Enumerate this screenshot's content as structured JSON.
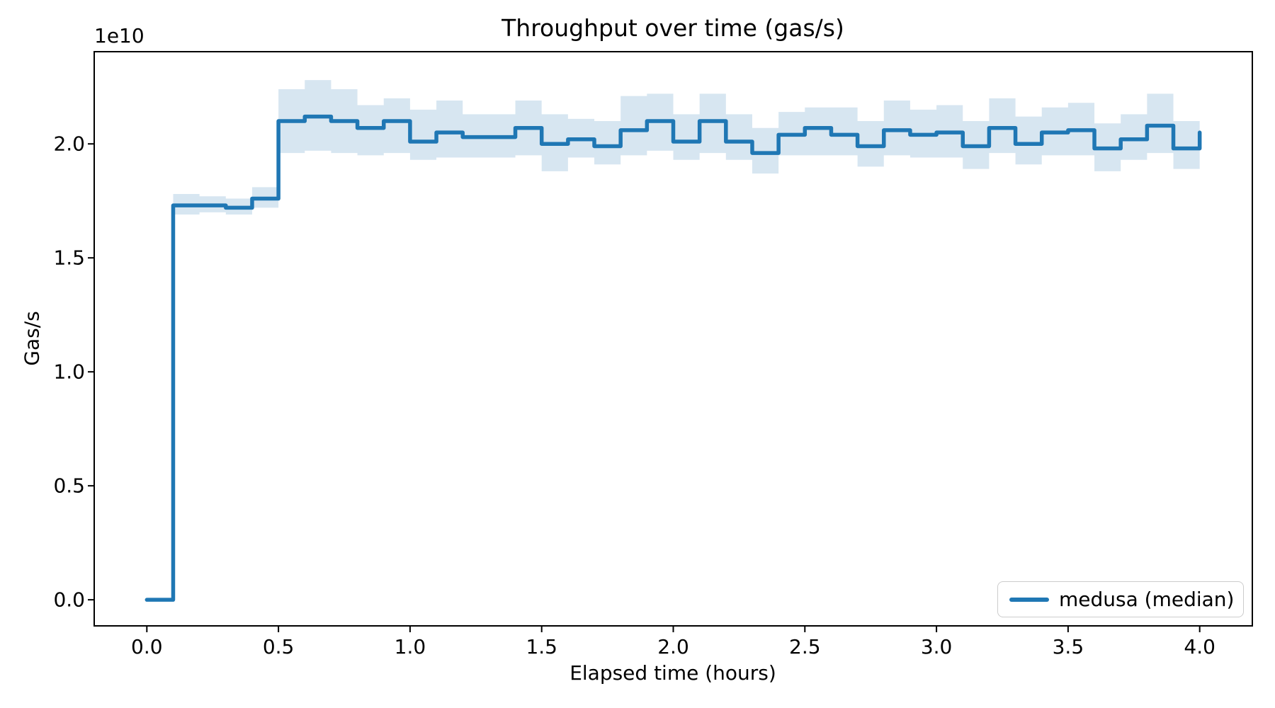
{
  "figure": {
    "title": "Throughput over time (gas/s)",
    "xlabel": "Elapsed time (hours)",
    "ylabel": "Gas/s",
    "offset_text": "1e10",
    "legend": {
      "label": "medusa (median)"
    },
    "colors": {
      "line": "#1f77b4",
      "band": "rgba(31,119,180,0.18)",
      "spine": "#000000",
      "text": "#000000",
      "legend_border": "#cccccc"
    }
  },
  "chart_data": {
    "type": "line",
    "subtype": "step-post-with-confidence-band",
    "title": "Throughput over time (gas/s)",
    "xlabel": "Elapsed time (hours)",
    "ylabel": "Gas/s",
    "y_scale_factor_label": "1e10",
    "grid": false,
    "legend_position": "lower right",
    "legend_entries": [
      "medusa (median)"
    ],
    "x_ticks": [
      "0.0",
      "0.5",
      "1.0",
      "1.5",
      "2.0",
      "2.5",
      "3.0",
      "3.5",
      "4.0"
    ],
    "y_ticks": [
      "0.0",
      "0.5",
      "1.0",
      "1.5",
      "2.0"
    ],
    "xlim_hours": [
      -0.2,
      4.2
    ],
    "ylim_1e10": [
      -0.1145,
      2.4045
    ],
    "x_hours": [
      0.0,
      0.1,
      0.2,
      0.3,
      0.4,
      0.5,
      0.6,
      0.7,
      0.8,
      0.9,
      1.0,
      1.1,
      1.2,
      1.3,
      1.4,
      1.5,
      1.6,
      1.7,
      1.8,
      1.9,
      2.0,
      2.1,
      2.2,
      2.3,
      2.4,
      2.5,
      2.6,
      2.7,
      2.8,
      2.9,
      3.0,
      3.1,
      3.2,
      3.3,
      3.4,
      3.5,
      3.6,
      3.7,
      3.8,
      3.9,
      4.0
    ],
    "series": [
      {
        "name": "medusa (median)",
        "median_gas_per_s_1e10": [
          0.0,
          1.73,
          1.73,
          1.72,
          1.76,
          2.1,
          2.12,
          2.1,
          2.07,
          2.1,
          2.01,
          2.05,
          2.03,
          2.03,
          2.07,
          2.0,
          2.02,
          1.99,
          2.06,
          2.1,
          2.01,
          2.1,
          2.01,
          1.96,
          2.04,
          2.07,
          2.04,
          1.99,
          2.06,
          2.04,
          2.05,
          1.99,
          2.07,
          2.0,
          2.05,
          2.06,
          1.98,
          2.02,
          2.08,
          1.98,
          2.05
        ],
        "band_lower_1e10": [
          0.0,
          1.69,
          1.7,
          1.69,
          1.72,
          1.96,
          1.97,
          1.96,
          1.95,
          1.96,
          1.93,
          1.94,
          1.94,
          1.94,
          1.95,
          1.88,
          1.94,
          1.91,
          1.95,
          1.97,
          1.93,
          1.96,
          1.93,
          1.87,
          1.95,
          1.95,
          1.95,
          1.9,
          1.95,
          1.94,
          1.94,
          1.89,
          1.96,
          1.91,
          1.95,
          1.95,
          1.88,
          1.93,
          1.96,
          1.89,
          1.96
        ],
        "band_upper_1e10": [
          0.0,
          1.78,
          1.77,
          1.76,
          1.81,
          2.24,
          2.28,
          2.24,
          2.17,
          2.2,
          2.15,
          2.19,
          2.13,
          2.13,
          2.19,
          2.13,
          2.11,
          2.1,
          2.21,
          2.22,
          2.13,
          2.22,
          2.13,
          2.07,
          2.14,
          2.16,
          2.16,
          2.1,
          2.19,
          2.15,
          2.17,
          2.1,
          2.2,
          2.12,
          2.16,
          2.18,
          2.09,
          2.13,
          2.22,
          2.1,
          2.13
        ]
      }
    ]
  }
}
